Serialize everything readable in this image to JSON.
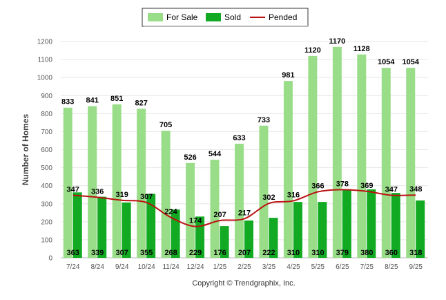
{
  "chart_data": {
    "type": "bar",
    "categories": [
      "7/24",
      "8/24",
      "9/24",
      "10/24",
      "11/24",
      "12/24",
      "1/25",
      "2/25",
      "3/25",
      "4/25",
      "5/25",
      "6/25",
      "7/25",
      "8/25",
      "9/25"
    ],
    "series": [
      {
        "name": "For Sale",
        "kind": "bar",
        "color": "#99dd88",
        "values": [
          833,
          841,
          851,
          827,
          705,
          526,
          544,
          633,
          733,
          981,
          1120,
          1170,
          1128,
          1054,
          1054
        ]
      },
      {
        "name": "Sold",
        "kind": "bar",
        "color": "#11aa22",
        "values": [
          363,
          339,
          307,
          355,
          268,
          229,
          176,
          207,
          222,
          310,
          310,
          379,
          380,
          360,
          318
        ]
      },
      {
        "name": "Pended",
        "kind": "line",
        "color": "#bb1111",
        "values": [
          347,
          336,
          319,
          307,
          224,
          174,
          207,
          217,
          302,
          316,
          366,
          378,
          369,
          347,
          348
        ]
      }
    ],
    "xlabel": "",
    "ylabel": "Number of Homes",
    "ylim": [
      0,
      1200
    ],
    "yticks": [
      0,
      100,
      200,
      300,
      400,
      500,
      600,
      700,
      800,
      900,
      1000,
      1100,
      1200
    ],
    "grid": true,
    "legend_position": "top-center"
  },
  "footer": {
    "copyright": "Copyright © Trendgraphix, Inc."
  }
}
